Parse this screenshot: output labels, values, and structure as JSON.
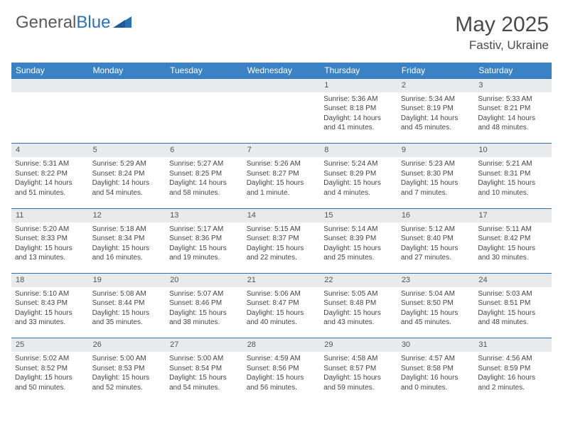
{
  "brand": {
    "part1": "General",
    "part2": "Blue"
  },
  "title": "May 2025",
  "location": "Fastiv, Ukraine",
  "colors": {
    "header_bg": "#3b82c4",
    "border": "#2a71b8",
    "daynum_bg": "#e9eaec",
    "text": "#444444"
  },
  "weekdays": [
    "Sunday",
    "Monday",
    "Tuesday",
    "Wednesday",
    "Thursday",
    "Friday",
    "Saturday"
  ],
  "weeks": [
    [
      null,
      null,
      null,
      null,
      {
        "n": "1",
        "sr": "5:36 AM",
        "ss": "8:18 PM",
        "dl": "14 hours and 41 minutes."
      },
      {
        "n": "2",
        "sr": "5:34 AM",
        "ss": "8:19 PM",
        "dl": "14 hours and 45 minutes."
      },
      {
        "n": "3",
        "sr": "5:33 AM",
        "ss": "8:21 PM",
        "dl": "14 hours and 48 minutes."
      }
    ],
    [
      {
        "n": "4",
        "sr": "5:31 AM",
        "ss": "8:22 PM",
        "dl": "14 hours and 51 minutes."
      },
      {
        "n": "5",
        "sr": "5:29 AM",
        "ss": "8:24 PM",
        "dl": "14 hours and 54 minutes."
      },
      {
        "n": "6",
        "sr": "5:27 AM",
        "ss": "8:25 PM",
        "dl": "14 hours and 58 minutes."
      },
      {
        "n": "7",
        "sr": "5:26 AM",
        "ss": "8:27 PM",
        "dl": "15 hours and 1 minute."
      },
      {
        "n": "8",
        "sr": "5:24 AM",
        "ss": "8:29 PM",
        "dl": "15 hours and 4 minutes."
      },
      {
        "n": "9",
        "sr": "5:23 AM",
        "ss": "8:30 PM",
        "dl": "15 hours and 7 minutes."
      },
      {
        "n": "10",
        "sr": "5:21 AM",
        "ss": "8:31 PM",
        "dl": "15 hours and 10 minutes."
      }
    ],
    [
      {
        "n": "11",
        "sr": "5:20 AM",
        "ss": "8:33 PM",
        "dl": "15 hours and 13 minutes."
      },
      {
        "n": "12",
        "sr": "5:18 AM",
        "ss": "8:34 PM",
        "dl": "15 hours and 16 minutes."
      },
      {
        "n": "13",
        "sr": "5:17 AM",
        "ss": "8:36 PM",
        "dl": "15 hours and 19 minutes."
      },
      {
        "n": "14",
        "sr": "5:15 AM",
        "ss": "8:37 PM",
        "dl": "15 hours and 22 minutes."
      },
      {
        "n": "15",
        "sr": "5:14 AM",
        "ss": "8:39 PM",
        "dl": "15 hours and 25 minutes."
      },
      {
        "n": "16",
        "sr": "5:12 AM",
        "ss": "8:40 PM",
        "dl": "15 hours and 27 minutes."
      },
      {
        "n": "17",
        "sr": "5:11 AM",
        "ss": "8:42 PM",
        "dl": "15 hours and 30 minutes."
      }
    ],
    [
      {
        "n": "18",
        "sr": "5:10 AM",
        "ss": "8:43 PM",
        "dl": "15 hours and 33 minutes."
      },
      {
        "n": "19",
        "sr": "5:08 AM",
        "ss": "8:44 PM",
        "dl": "15 hours and 35 minutes."
      },
      {
        "n": "20",
        "sr": "5:07 AM",
        "ss": "8:46 PM",
        "dl": "15 hours and 38 minutes."
      },
      {
        "n": "21",
        "sr": "5:06 AM",
        "ss": "8:47 PM",
        "dl": "15 hours and 40 minutes."
      },
      {
        "n": "22",
        "sr": "5:05 AM",
        "ss": "8:48 PM",
        "dl": "15 hours and 43 minutes."
      },
      {
        "n": "23",
        "sr": "5:04 AM",
        "ss": "8:50 PM",
        "dl": "15 hours and 45 minutes."
      },
      {
        "n": "24",
        "sr": "5:03 AM",
        "ss": "8:51 PM",
        "dl": "15 hours and 48 minutes."
      }
    ],
    [
      {
        "n": "25",
        "sr": "5:02 AM",
        "ss": "8:52 PM",
        "dl": "15 hours and 50 minutes."
      },
      {
        "n": "26",
        "sr": "5:00 AM",
        "ss": "8:53 PM",
        "dl": "15 hours and 52 minutes."
      },
      {
        "n": "27",
        "sr": "5:00 AM",
        "ss": "8:54 PM",
        "dl": "15 hours and 54 minutes."
      },
      {
        "n": "28",
        "sr": "4:59 AM",
        "ss": "8:56 PM",
        "dl": "15 hours and 56 minutes."
      },
      {
        "n": "29",
        "sr": "4:58 AM",
        "ss": "8:57 PM",
        "dl": "15 hours and 59 minutes."
      },
      {
        "n": "30",
        "sr": "4:57 AM",
        "ss": "8:58 PM",
        "dl": "16 hours and 0 minutes."
      },
      {
        "n": "31",
        "sr": "4:56 AM",
        "ss": "8:59 PM",
        "dl": "16 hours and 2 minutes."
      }
    ]
  ],
  "labels": {
    "sunrise": "Sunrise:",
    "sunset": "Sunset:",
    "daylight": "Daylight:"
  }
}
